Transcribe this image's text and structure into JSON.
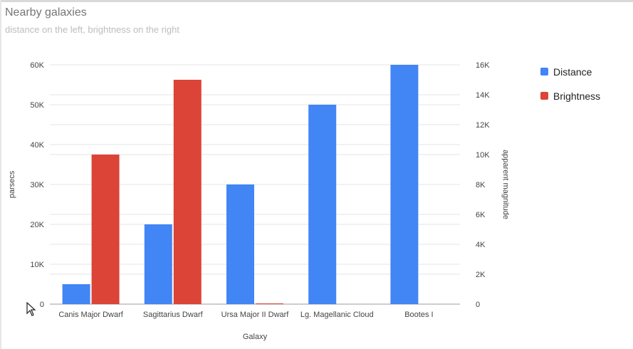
{
  "title": "Nearby galaxies",
  "subtitle": "distance on the left, brightness on the right",
  "colors": {
    "distance": "#4285f4",
    "brightness": "#db4437",
    "text": "#444444",
    "muted": "#757575",
    "grid": "#e6e6e6"
  },
  "chart_data": {
    "type": "bar",
    "title": "Nearby galaxies",
    "subtitle": "distance on the left, brightness on the right",
    "xlabel": "Galaxy",
    "ylabel_left": "parsecs",
    "ylabel_right": "apparent magnitude",
    "categories": [
      "Canis Major Dwarf",
      "Sagittarius Dwarf",
      "Ursa Major II Dwarf",
      "Lg. Magellanic Cloud",
      "Bootes I"
    ],
    "ylim_left": [
      0,
      60000
    ],
    "ylim_right": [
      0,
      16000
    ],
    "left_ticks": [
      "0",
      "10K",
      "20K",
      "30K",
      "40K",
      "50K",
      "60K"
    ],
    "right_ticks": [
      "0",
      "2K",
      "4K",
      "6K",
      "8K",
      "10K",
      "12K",
      "14K",
      "16K"
    ],
    "grid": true,
    "legend_position": "right",
    "series": [
      {
        "name": "Distance",
        "axis": "left",
        "values": [
          5000,
          20000,
          30000,
          50000,
          60000
        ]
      },
      {
        "name": "Brightness",
        "axis": "right",
        "values": [
          10000,
          15000,
          20,
          0,
          0
        ]
      }
    ]
  }
}
